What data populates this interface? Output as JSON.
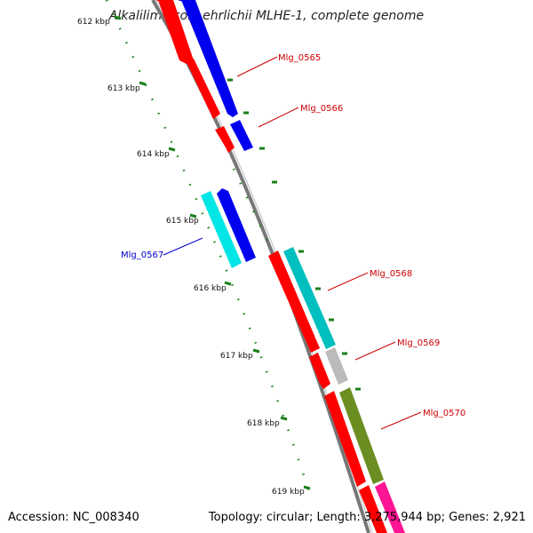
{
  "title": "Alkalilimnicola ehrlichii MLHE-1, complete genome",
  "footer": {
    "accession": "Accession: NC_008340",
    "summary": "Topology: circular; Length: 3,275,944 bp; Genes: 2,921"
  },
  "scale_labels": [
    "612 kbp",
    "613 kbp",
    "614 kbp",
    "615 kbp",
    "616 kbp",
    "617 kbp",
    "618 kbp",
    "619 kbp"
  ],
  "gene_labels": [
    {
      "text": "Mlg_0565",
      "color": "#cc0000"
    },
    {
      "text": "Mlg_0566",
      "color": "#cc0000"
    },
    {
      "text": "Mlg_0567",
      "color": "#0000cc"
    },
    {
      "text": "Mlg_0568",
      "color": "#cc0000"
    },
    {
      "text": "Mlg_0569",
      "color": "#cc0000"
    },
    {
      "text": "Mlg_0570",
      "color": "#cc0000"
    }
  ],
  "colors": {
    "forward_cds": "#ff0000",
    "reverse_cds": "#0000ee",
    "cyan_cds": "#00cccc",
    "gray_cds": "#bbbbbb",
    "olive_cds": "#6b8e23",
    "pink_cds": "#ff1493",
    "backbone": "#888888",
    "ticks": "#1a7f1a"
  }
}
